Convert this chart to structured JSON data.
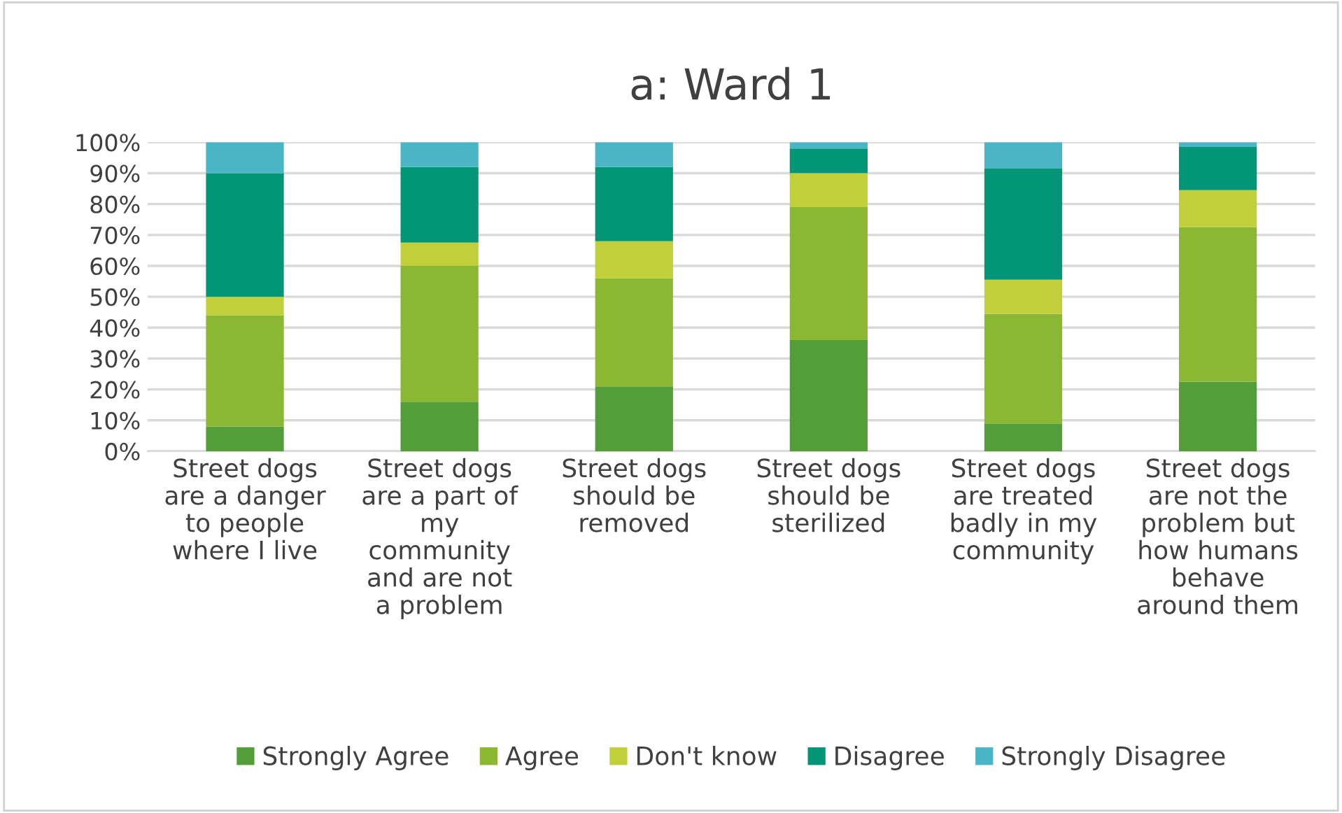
{
  "chart_data": {
    "type": "bar",
    "title": "a: Ward 1",
    "stacked": true,
    "categories": [
      "Street dogs\nare a danger\nto people\nwhere I live",
      "Street dogs\nare a part of\nmy\ncommunity\nand are not\na problem",
      "Street dogs\nshould be\nremoved",
      "Street dogs\nshould be\nsterilized",
      "Street dogs\nare treated\nbadly in my\ncommunity",
      "Street dogs\nare not the\nproblem but\nhow humans\nbehave\naround them"
    ],
    "series": [
      {
        "name": "Strongly Agree",
        "color": "#549e39",
        "values": [
          8,
          16,
          21,
          36,
          9,
          22.5
        ]
      },
      {
        "name": "Agree",
        "color": "#8ab833",
        "values": [
          36,
          44,
          35,
          43,
          35.5,
          50
        ]
      },
      {
        "name": "Don't know",
        "color": "#c0cf3a",
        "values": [
          6,
          7.5,
          12,
          11,
          11,
          12
        ]
      },
      {
        "name": "Disagree",
        "color": "#029676",
        "values": [
          40,
          24.5,
          24,
          8,
          36,
          14
        ]
      },
      {
        "name": "Strongly Disagree",
        "color": "#4ab5c4",
        "values": [
          10,
          8,
          8,
          2,
          8.5,
          1.5
        ]
      }
    ],
    "ylim": [
      0,
      100
    ],
    "yticks": [
      {
        "value": 0,
        "label": "0%"
      },
      {
        "value": 10,
        "label": "10%"
      },
      {
        "value": 20,
        "label": "20%"
      },
      {
        "value": 30,
        "label": "30%"
      },
      {
        "value": 40,
        "label": "40%"
      },
      {
        "value": 50,
        "label": "50%"
      },
      {
        "value": 60,
        "label": "60%"
      },
      {
        "value": 70,
        "label": "70%"
      },
      {
        "value": 80,
        "label": "80%"
      },
      {
        "value": 90,
        "label": "90%"
      },
      {
        "value": 100,
        "label": "100%"
      }
    ],
    "grid": "y",
    "legend": "bottom"
  }
}
